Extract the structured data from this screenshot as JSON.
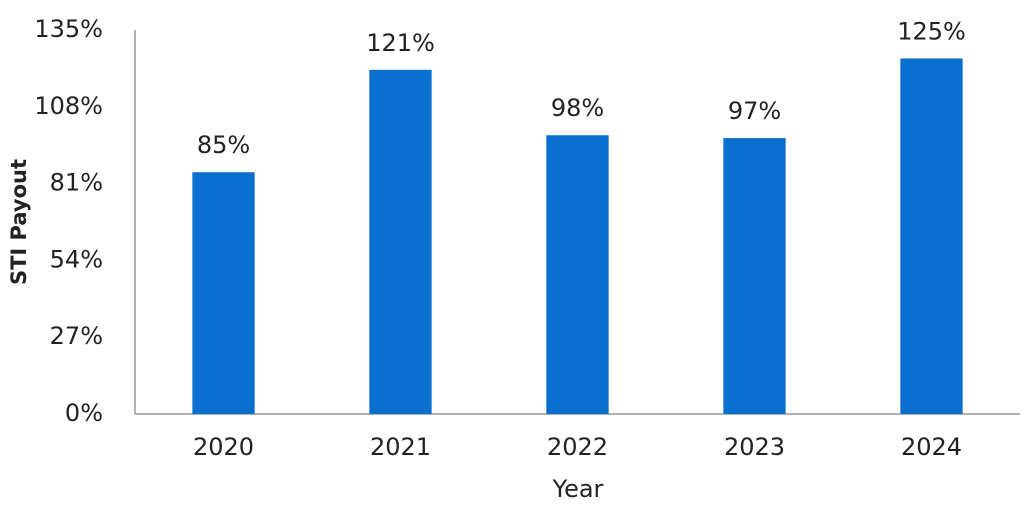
{
  "chart_data": {
    "type": "bar",
    "x_label": "Year",
    "y_label": "STI Payout",
    "categories": [
      "2020",
      "2021",
      "2022",
      "2023",
      "2024"
    ],
    "values": [
      85,
      121,
      98,
      97,
      125
    ],
    "value_labels": [
      "85%",
      "121%",
      "98%",
      "97%",
      "125%"
    ],
    "color": "#0a6fcf",
    "ylim": [
      0,
      135
    ],
    "yticks": [
      {
        "value": 0,
        "label": "0%"
      },
      {
        "value": 27,
        "label": "27%"
      },
      {
        "value": 54,
        "label": "54%"
      },
      {
        "value": 81,
        "label": "81%"
      },
      {
        "value": 108,
        "label": "108%"
      },
      {
        "value": 135,
        "label": "135%"
      }
    ],
    "grid": false
  }
}
